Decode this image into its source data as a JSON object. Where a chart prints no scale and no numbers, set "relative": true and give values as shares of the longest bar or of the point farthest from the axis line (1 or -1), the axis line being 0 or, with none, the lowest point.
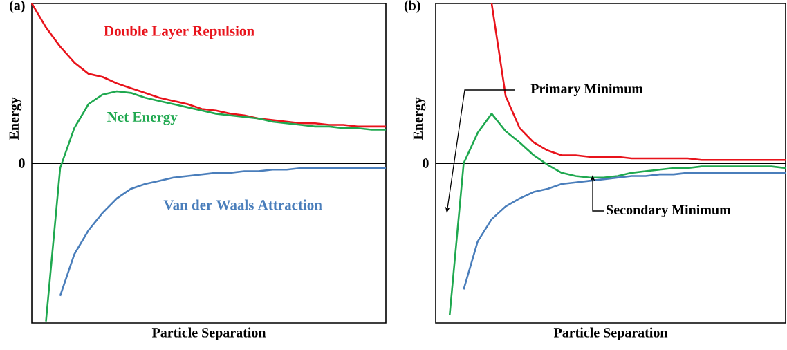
{
  "chart_data": [
    {
      "type": "line",
      "title": "(a)",
      "xlabel": "Particle Separation",
      "ylabel": "Energy",
      "relative": true,
      "categories": [
        null,
        null,
        null,
        null,
        null,
        null,
        null,
        null,
        null,
        null,
        null,
        null,
        null,
        null,
        null,
        null,
        null,
        null,
        null,
        null,
        null,
        null,
        null,
        null,
        null,
        null
      ],
      "series": [
        {
          "name": "Double Layer Repulsion",
          "color": "#e8131b",
          "values": [
            1.0,
            0.85,
            0.73,
            0.63,
            0.56,
            0.54,
            0.5,
            0.47,
            0.44,
            0.41,
            0.39,
            0.37,
            0.34,
            0.33,
            0.31,
            0.3,
            0.28,
            0.27,
            0.26,
            0.25,
            0.25,
            0.24,
            0.24,
            0.23,
            0.23,
            0.23
          ]
        },
        {
          "name": "Net Energy",
          "color": "#1fa84f",
          "values": [
            null,
            -0.99,
            -0.03,
            0.22,
            0.37,
            0.43,
            0.45,
            0.44,
            0.41,
            0.39,
            0.37,
            0.35,
            0.33,
            0.31,
            0.3,
            0.29,
            0.28,
            0.26,
            0.25,
            0.24,
            0.23,
            0.23,
            0.22,
            0.22,
            0.21,
            0.21
          ]
        },
        {
          "name": "Van der Waals Attraction",
          "color": "#4a7ebb",
          "values": [
            null,
            null,
            -0.83,
            -0.57,
            -0.42,
            -0.31,
            -0.22,
            -0.16,
            -0.13,
            -0.11,
            -0.09,
            -0.08,
            -0.07,
            -0.06,
            -0.06,
            -0.05,
            -0.05,
            -0.04,
            -0.04,
            -0.03,
            -0.03,
            -0.03,
            -0.03,
            -0.03,
            -0.03,
            -0.03
          ]
        }
      ],
      "annotations": [
        "0"
      ]
    },
    {
      "type": "line",
      "title": "(b)",
      "xlabel": "Particle Separation",
      "ylabel": "Energy",
      "relative": true,
      "categories": [
        null,
        null,
        null,
        null,
        null,
        null,
        null,
        null,
        null,
        null,
        null,
        null,
        null,
        null,
        null,
        null,
        null,
        null,
        null,
        null,
        null,
        null,
        null,
        null,
        null,
        null
      ],
      "series": [
        {
          "color": "#e8131b",
          "values": [
            null,
            null,
            null,
            null,
            1.0,
            0.42,
            0.22,
            0.13,
            0.08,
            0.05,
            0.05,
            0.04,
            0.04,
            0.04,
            0.03,
            0.03,
            0.03,
            0.03,
            0.03,
            0.02,
            0.02,
            0.02,
            0.02,
            0.02,
            0.02,
            0.02
          ]
        },
        {
          "color": "#1fa84f",
          "values": [
            null,
            -0.95,
            0.0,
            0.19,
            0.31,
            0.2,
            0.13,
            0.05,
            -0.01,
            -0.06,
            -0.08,
            -0.09,
            -0.09,
            -0.08,
            -0.06,
            -0.05,
            -0.04,
            -0.03,
            -0.03,
            -0.02,
            -0.02,
            -0.02,
            -0.02,
            -0.02,
            -0.02,
            -0.03
          ]
        },
        {
          "color": "#4a7ebb",
          "values": [
            null,
            null,
            -0.79,
            -0.49,
            -0.35,
            -0.27,
            -0.22,
            -0.18,
            -0.16,
            -0.13,
            -0.12,
            -0.11,
            -0.1,
            -0.09,
            -0.08,
            -0.08,
            -0.07,
            -0.07,
            -0.06,
            -0.06,
            -0.06,
            -0.06,
            -0.06,
            -0.06,
            -0.06,
            -0.06
          ]
        }
      ],
      "annotations": [
        "0",
        "Primary Minimum",
        "Secondary Minimum"
      ]
    }
  ]
}
